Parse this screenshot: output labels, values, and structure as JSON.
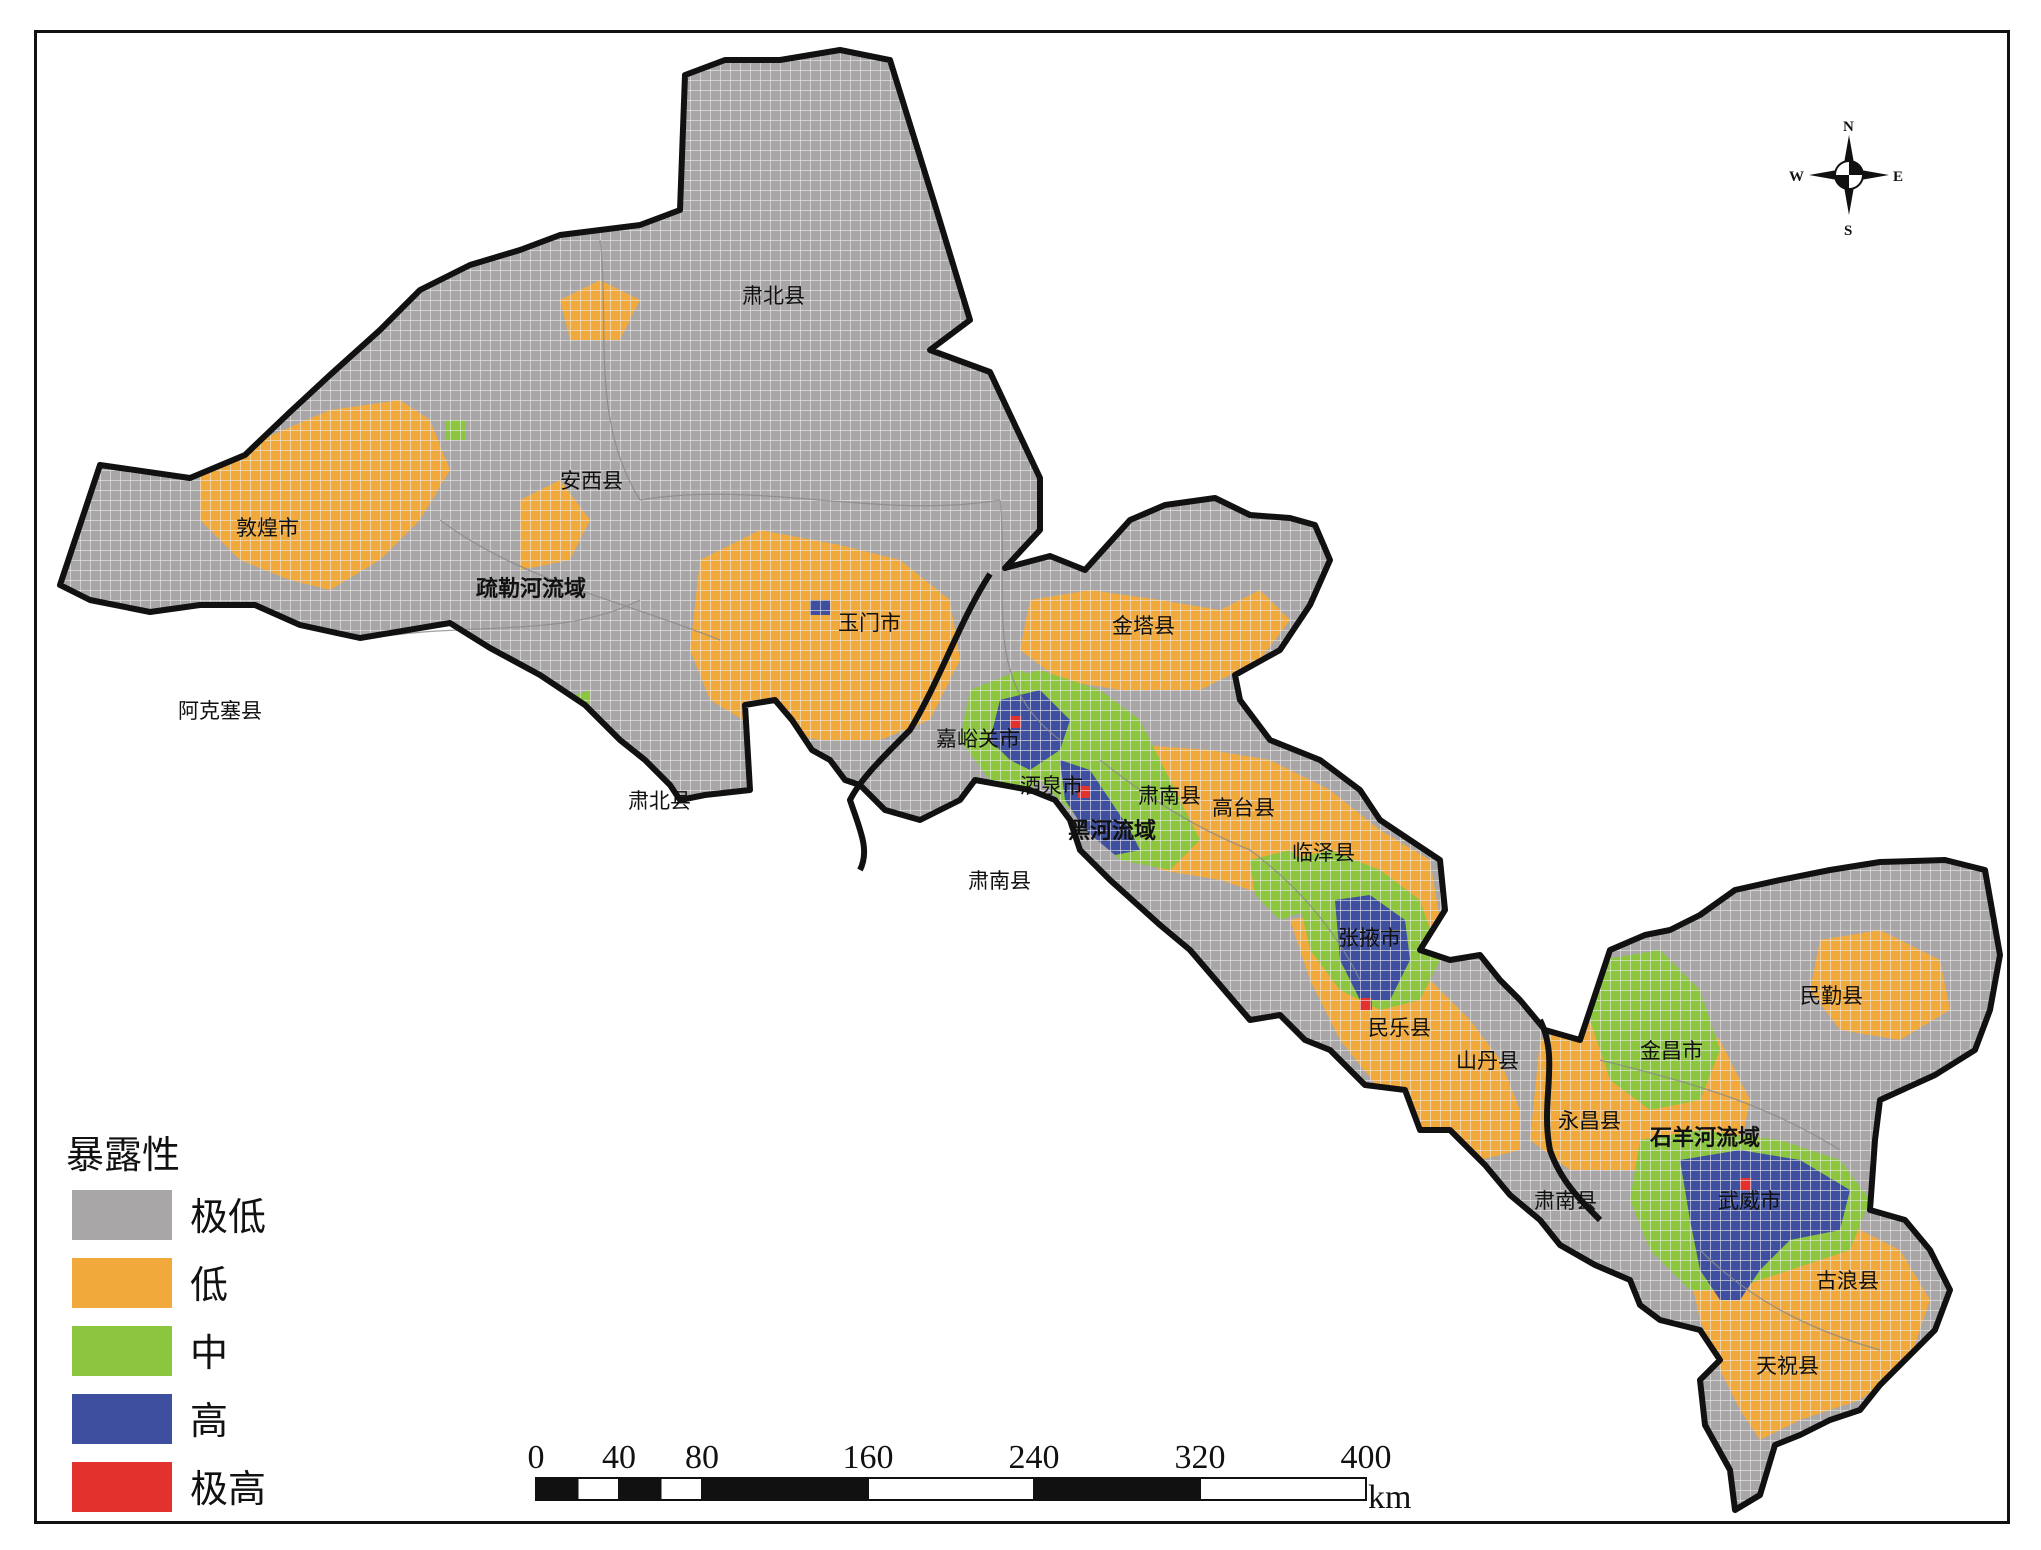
{
  "legend": {
    "title": "暴露性",
    "items": [
      {
        "label": "极低",
        "color": "#a9a6a7"
      },
      {
        "label": "低",
        "color": "#f2a93b"
      },
      {
        "label": "中",
        "color": "#8cc63f"
      },
      {
        "label": "高",
        "color": "#3e4fa0"
      },
      {
        "label": "极高",
        "color": "#e3312d"
      }
    ]
  },
  "scale_bar": {
    "ticks": [
      "0",
      "40",
      "80",
      "160",
      "240",
      "320",
      "400"
    ],
    "unit": "km"
  },
  "compass": {
    "n": "N",
    "s": "S",
    "e": "E",
    "w": "W"
  },
  "places": [
    {
      "id": "subei-north",
      "label": "肃北县"
    },
    {
      "id": "anxi",
      "label": "安西县"
    },
    {
      "id": "dunhuang",
      "label": "敦煌市"
    },
    {
      "id": "akesai",
      "label": "阿克塞县"
    },
    {
      "id": "subei-south",
      "label": "肃北县"
    },
    {
      "id": "yumen",
      "label": "玉门市"
    },
    {
      "id": "jinta",
      "label": "金塔县"
    },
    {
      "id": "jiayuguan",
      "label": "嘉峪关市"
    },
    {
      "id": "jiuquan",
      "label": "酒泉市"
    },
    {
      "id": "sunan-1",
      "label": "肃南县"
    },
    {
      "id": "gaotai",
      "label": "高台县"
    },
    {
      "id": "sunan-2",
      "label": "肃南县"
    },
    {
      "id": "linze",
      "label": "临泽县"
    },
    {
      "id": "zhangye",
      "label": "张掖市"
    },
    {
      "id": "minle",
      "label": "民乐县"
    },
    {
      "id": "shandan",
      "label": "山丹县"
    },
    {
      "id": "minqin",
      "label": "民勤县"
    },
    {
      "id": "jinchang",
      "label": "金昌市"
    },
    {
      "id": "yongchang",
      "label": "永昌县"
    },
    {
      "id": "sunan-3",
      "label": "肃南县"
    },
    {
      "id": "wuwei",
      "label": "武威市"
    },
    {
      "id": "gulang",
      "label": "古浪县"
    },
    {
      "id": "tianzhu",
      "label": "天祝县"
    }
  ],
  "basins": [
    {
      "id": "shulehe",
      "label": "疏勒河流域"
    },
    {
      "id": "heihe",
      "label": "黑河流域"
    },
    {
      "id": "shiyanghe",
      "label": "石羊河流域"
    }
  ]
}
